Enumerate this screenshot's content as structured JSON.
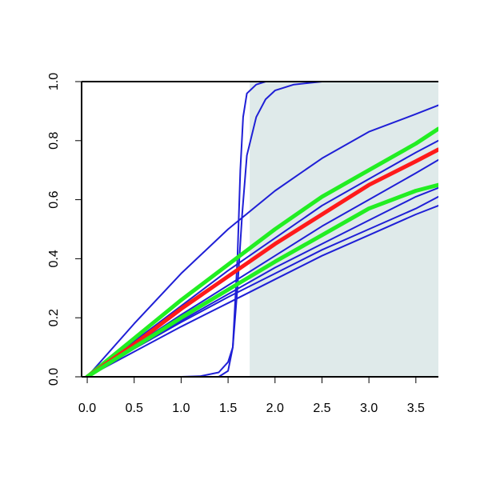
{
  "chart_data": {
    "type": "line",
    "title": "",
    "xlabel": "",
    "ylabel": "",
    "xlim": [
      -0.06,
      3.74
    ],
    "ylim": [
      0,
      1
    ],
    "x_ticks": [
      "0.0",
      "0.5",
      "1.0",
      "1.5",
      "2.0",
      "2.5",
      "3.0",
      "3.5"
    ],
    "x_tick_values": [
      0,
      0.5,
      1.0,
      1.5,
      2.0,
      2.5,
      3.0,
      3.5
    ],
    "y_ticks": [
      "0.0",
      "0.2",
      "0.4",
      "0.6",
      "0.8",
      "1.0"
    ],
    "y_tick_values": [
      0,
      0.2,
      0.4,
      0.6,
      0.8,
      1.0
    ],
    "shaded_region": {
      "x_from": 1.73,
      "x_to": 3.74,
      "y_from": 0,
      "y_to": 1,
      "color": "#dfeaea"
    },
    "colors": {
      "blue": "#1f1fd6",
      "green": "#22ee22",
      "red": "#ff1a1a"
    },
    "series": [
      {
        "color": "blue",
        "points": [
          [
            0,
            0
          ],
          [
            1.0,
            0.0
          ],
          [
            1.2,
            0.002
          ],
          [
            1.4,
            0.015
          ],
          [
            1.5,
            0.05
          ],
          [
            1.55,
            0.1
          ],
          [
            1.6,
            0.3
          ],
          [
            1.65,
            0.55
          ],
          [
            1.7,
            0.75
          ],
          [
            1.8,
            0.88
          ],
          [
            1.9,
            0.94
          ],
          [
            2.0,
            0.97
          ],
          [
            2.2,
            0.99
          ],
          [
            2.5,
            1.0
          ],
          [
            3.74,
            1.0
          ]
        ]
      },
      {
        "color": "blue",
        "points": [
          [
            0,
            0
          ],
          [
            1.4,
            0.0
          ],
          [
            1.5,
            0.02
          ],
          [
            1.55,
            0.1
          ],
          [
            1.6,
            0.4
          ],
          [
            1.63,
            0.7
          ],
          [
            1.66,
            0.88
          ],
          [
            1.7,
            0.96
          ],
          [
            1.8,
            0.99
          ],
          [
            1.9,
            1.0
          ],
          [
            3.74,
            1.0
          ]
        ]
      },
      {
        "color": "blue",
        "points": [
          [
            0,
            0
          ],
          [
            0.5,
            0.18
          ],
          [
            1.0,
            0.35
          ],
          [
            1.5,
            0.5
          ],
          [
            2.0,
            0.63
          ],
          [
            2.5,
            0.74
          ],
          [
            3.0,
            0.83
          ],
          [
            3.5,
            0.89
          ],
          [
            3.74,
            0.92
          ]
        ]
      },
      {
        "color": "blue",
        "points": [
          [
            0,
            0
          ],
          [
            0.5,
            0.12
          ],
          [
            1.0,
            0.24
          ],
          [
            1.5,
            0.36
          ],
          [
            2.0,
            0.47
          ],
          [
            2.5,
            0.58
          ],
          [
            3.0,
            0.67
          ],
          [
            3.5,
            0.76
          ],
          [
            3.74,
            0.8
          ]
        ]
      },
      {
        "color": "blue",
        "points": [
          [
            0,
            0
          ],
          [
            0.5,
            0.105
          ],
          [
            1.0,
            0.21
          ],
          [
            1.5,
            0.31
          ],
          [
            2.0,
            0.41
          ],
          [
            2.5,
            0.51
          ],
          [
            3.0,
            0.6
          ],
          [
            3.5,
            0.69
          ],
          [
            3.74,
            0.735
          ]
        ]
      },
      {
        "color": "blue",
        "points": [
          [
            0,
            0
          ],
          [
            0.5,
            0.1
          ],
          [
            1.0,
            0.19
          ],
          [
            1.5,
            0.28
          ],
          [
            2.0,
            0.37
          ],
          [
            2.5,
            0.45
          ],
          [
            3.0,
            0.53
          ],
          [
            3.5,
            0.61
          ],
          [
            3.74,
            0.64
          ]
        ]
      },
      {
        "color": "blue",
        "points": [
          [
            0,
            0
          ],
          [
            0.5,
            0.095
          ],
          [
            1.0,
            0.185
          ],
          [
            1.5,
            0.27
          ],
          [
            2.0,
            0.35
          ],
          [
            2.5,
            0.43
          ],
          [
            3.0,
            0.5
          ],
          [
            3.5,
            0.57
          ],
          [
            3.74,
            0.61
          ]
        ]
      },
      {
        "color": "blue",
        "points": [
          [
            0,
            0
          ],
          [
            0.5,
            0.085
          ],
          [
            1.0,
            0.17
          ],
          [
            1.5,
            0.25
          ],
          [
            2.0,
            0.33
          ],
          [
            2.5,
            0.41
          ],
          [
            3.0,
            0.48
          ],
          [
            3.5,
            0.55
          ],
          [
            3.74,
            0.58
          ]
        ]
      },
      {
        "color": "green",
        "points": [
          [
            0,
            0
          ],
          [
            0.5,
            0.13
          ],
          [
            1.0,
            0.26
          ],
          [
            1.5,
            0.38
          ],
          [
            2.0,
            0.5
          ],
          [
            2.5,
            0.61
          ],
          [
            3.0,
            0.7
          ],
          [
            3.5,
            0.79
          ],
          [
            3.74,
            0.84
          ]
        ]
      },
      {
        "color": "red",
        "points": [
          [
            0,
            0
          ],
          [
            0.5,
            0.11
          ],
          [
            1.0,
            0.23
          ],
          [
            1.5,
            0.34
          ],
          [
            2.0,
            0.45
          ],
          [
            2.5,
            0.55
          ],
          [
            3.0,
            0.65
          ],
          [
            3.5,
            0.73
          ],
          [
            3.74,
            0.77
          ]
        ]
      },
      {
        "color": "green",
        "points": [
          [
            0,
            0
          ],
          [
            0.5,
            0.1
          ],
          [
            1.0,
            0.2
          ],
          [
            1.5,
            0.295
          ],
          [
            2.0,
            0.39
          ],
          [
            2.5,
            0.48
          ],
          [
            3.0,
            0.57
          ],
          [
            3.5,
            0.63
          ],
          [
            3.74,
            0.65
          ]
        ]
      }
    ]
  }
}
